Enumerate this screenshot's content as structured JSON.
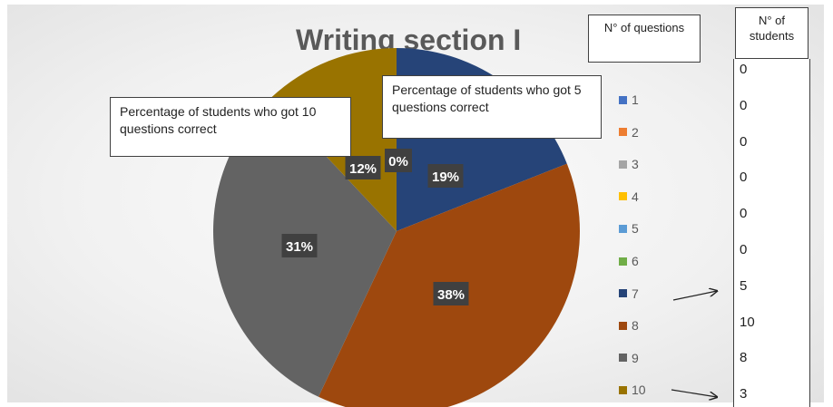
{
  "chart_data": {
    "type": "pie",
    "title": "Writing section I",
    "categories": [
      "1",
      "2",
      "3",
      "4",
      "5",
      "6",
      "7",
      "8",
      "9",
      "10"
    ],
    "values": [
      0,
      0,
      0,
      0,
      0,
      0,
      19,
      38,
      31,
      12
    ],
    "data_labels": [
      "",
      "",
      "",
      "",
      "",
      "",
      "19%",
      "38%",
      "31%",
      "12%"
    ],
    "overlapped_label": "0%",
    "legend_position": "right",
    "colors": [
      "#4472C4",
      "#ED7D31",
      "#A5A5A5",
      "#FFC000",
      "#5B9BD5",
      "#70AD47",
      "#264478",
      "#9E480E",
      "#636363",
      "#997300"
    ]
  },
  "callouts": {
    "ten_correct": "Percentage of students who got 10 questions correct",
    "five_correct": "Percentage of students who got 5 questions correct"
  },
  "table": {
    "questions_header": "N° of questions",
    "students_header": "N° of students",
    "students": [
      "0",
      "0",
      "0",
      "0",
      "0",
      "0",
      "5",
      "10",
      "8",
      "3"
    ]
  }
}
